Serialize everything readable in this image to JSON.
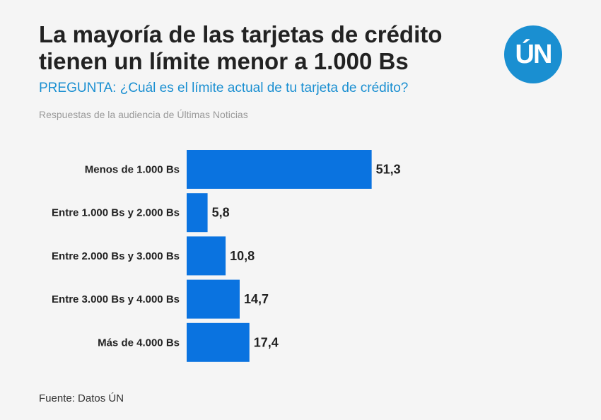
{
  "header": {
    "title": "La mayoría de las tarjetas de crédito tienen un límite menor a 1.000 Bs",
    "question": "PREGUNTA: ¿Cuál es el límite actual de tu tarjeta de crédito?",
    "note": "Respuestas de la audiencia de Últimas Noticias",
    "logo_text": "ÚN"
  },
  "colors": {
    "bar": "#0a73e0",
    "accent": "#1a8fd1"
  },
  "chart_data": {
    "type": "bar",
    "orientation": "horizontal",
    "categories": [
      "Menos de 1.000 Bs",
      "Entre 1.000 Bs y 2.000 Bs",
      "Entre 2.000 Bs y 3.000 Bs",
      "Entre 3.000 Bs y 4.000 Bs",
      "Más de 4.000 Bs"
    ],
    "values": [
      51.3,
      5.8,
      10.8,
      14.7,
      17.4
    ],
    "value_labels": [
      "51,3",
      "5,8",
      "10,8",
      "14,7",
      "17,4"
    ],
    "xlim": [
      0,
      60
    ],
    "title": "La mayoría de las tarjetas de crédito tienen un límite menor a 1.000 Bs",
    "xlabel": "",
    "ylabel": "",
    "grid": false
  },
  "footer": {
    "source": "Fuente: Datos ÚN"
  }
}
